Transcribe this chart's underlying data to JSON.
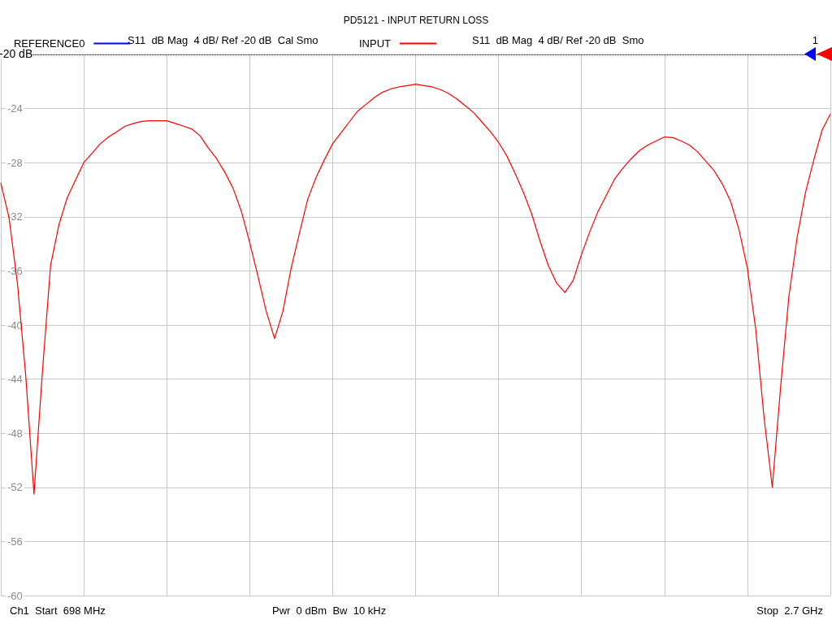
{
  "chart_data": {
    "type": "line",
    "title": "PD5121 - INPUT RETURN LOSS",
    "categories": [
      null,
      null,
      null,
      null,
      null,
      null,
      null,
      null,
      null,
      null,
      null,
      null,
      null,
      null,
      null,
      null,
      null,
      null,
      null,
      null,
      null,
      null,
      null,
      null,
      null,
      null,
      null,
      null,
      null,
      null,
      null,
      null,
      null,
      null,
      null,
      null,
      null,
      null,
      null,
      null,
      null,
      null,
      null,
      null,
      null,
      null,
      null,
      null,
      null,
      null,
      null,
      null,
      null,
      null,
      null,
      null,
      null,
      null,
      null,
      null,
      null,
      null,
      null,
      null,
      null,
      null,
      null,
      null,
      null,
      null,
      null,
      null,
      null,
      null,
      null,
      null,
      null,
      null,
      null,
      null,
      null,
      null,
      null,
      null,
      null,
      null,
      null,
      null,
      null,
      null,
      null,
      null,
      null,
      null,
      null,
      null,
      null,
      null,
      null,
      null,
      null
    ],
    "series": [
      {
        "name": "REFERENCE0",
        "color": "#0000ff",
        "values": [
          null,
          null,
          null,
          null,
          null,
          null,
          null,
          null,
          null,
          null,
          null,
          null,
          null,
          null,
          null,
          null,
          null,
          null,
          null,
          null,
          null,
          null,
          null,
          null,
          null,
          null,
          null,
          null,
          null,
          null,
          null,
          null,
          null,
          null,
          null,
          null,
          null,
          null,
          null,
          null,
          null,
          null,
          null,
          null,
          null,
          null,
          null,
          null,
          null,
          null,
          null,
          null,
          null,
          null,
          null,
          null,
          null,
          null,
          null,
          null,
          null,
          null,
          null,
          null,
          null,
          null,
          null,
          null,
          null,
          null,
          null,
          null,
          null,
          null,
          null,
          null,
          null,
          null,
          null,
          null,
          null,
          null,
          null,
          null,
          null,
          null,
          null,
          null,
          null,
          null,
          null,
          null,
          null,
          null,
          null,
          null,
          null,
          null,
          null,
          null,
          null
        ]
      },
      {
        "name": "INPUT",
        "color": "#ff0000",
        "values": [
          -29.5,
          -32.1,
          -36.9,
          -43.7,
          -52.5,
          -43.6,
          -35.6,
          -32.6,
          -30.6,
          -29.3,
          -28,
          -27.3,
          -26.6,
          -26.1,
          -25.7,
          -25.3,
          -25.1,
          -24.95,
          -24.9,
          -24.9,
          -24.9,
          -25.1,
          -25.3,
          -25.5,
          -26,
          -26.9,
          -27.7,
          -28.7,
          -29.9,
          -31.6,
          -33.9,
          -36.4,
          -39,
          -41,
          -39,
          -35.8,
          -33.2,
          -30.7,
          -29.1,
          -27.8,
          -26.6,
          -25.8,
          -25,
          -24.2,
          -23.7,
          -23.2,
          -22.8,
          -22.55,
          -22.4,
          -22.3,
          -22.2,
          -22.3,
          -22.4,
          -22.6,
          -22.9,
          -23.3,
          -23.8,
          -24.3,
          -25,
          -25.7,
          -26.5,
          -27.5,
          -28.8,
          -30.2,
          -31.8,
          -33.8,
          -35.6,
          -36.9,
          -37.6,
          -36.7,
          -34.8,
          -33.1,
          -31.6,
          -30.4,
          -29.2,
          -28.4,
          -27.7,
          -27.1,
          -26.7,
          -26.4,
          -26.1,
          -26.15,
          -26.4,
          -26.7,
          -27.2,
          -27.9,
          -28.6,
          -29.6,
          -30.9,
          -33,
          -35.8,
          -40.3,
          -46.8,
          -52,
          -44.6,
          -37.9,
          -33.5,
          -30.2,
          -27.8,
          -25.6,
          -24.4
        ]
      }
    ],
    "ylim": [
      -60,
      -20
    ],
    "yticks": [
      -60,
      -56,
      -52,
      -48,
      -44,
      -40,
      -36,
      -32,
      -28,
      -24,
      {
        "value": -20,
        "label": null
      }
    ],
    "tick_labels": "y",
    "grid": true,
    "legend": "top left",
    "marker": "none",
    "line_style": "solid",
    "ref_lines": [
      {
        "axis": "y",
        "value": -20,
        "label": "-20 dB",
        "color": "#000000",
        "line_style": "dotted"
      }
    ],
    "annotations": [
      "S11  dB Mag  4 dB/ Ref -20 dB  Cal Smo",
      "S11  dB Mag  4 dB/ Ref -20 dB  Smo",
      "1",
      "Ch1  Start  698 MHz",
      "Pwr  0 dBm  Bw  10 kHz",
      "Stop  2.7 GHz"
    ]
  }
}
